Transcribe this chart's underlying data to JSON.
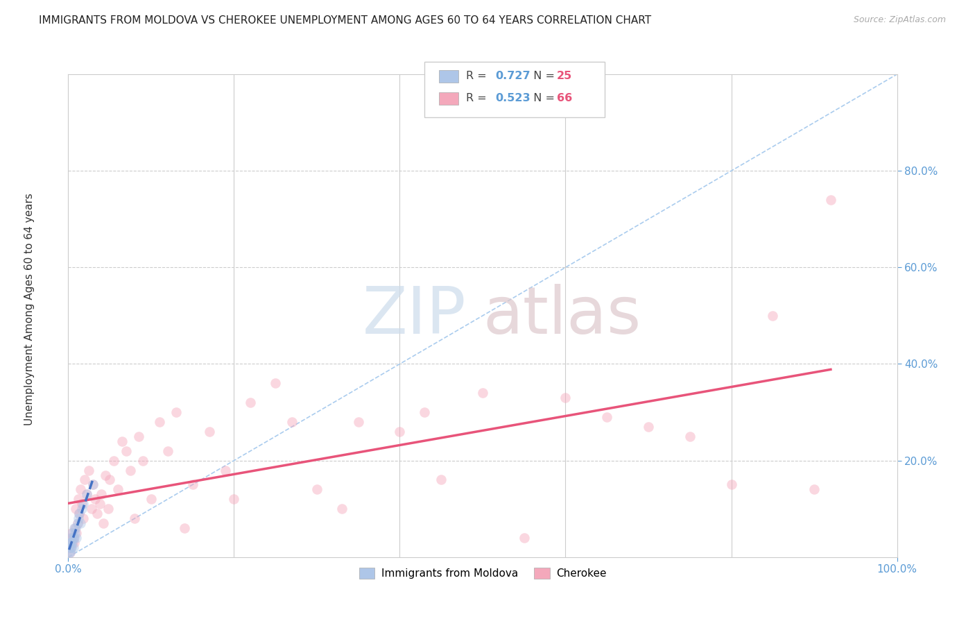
{
  "title": "IMMIGRANTS FROM MOLDOVA VS CHEROKEE UNEMPLOYMENT AMONG AGES 60 TO 64 YEARS CORRELATION CHART",
  "source": "Source: ZipAtlas.com",
  "ylabel": "Unemployment Among Ages 60 to 64 years",
  "background_color": "#ffffff",
  "grid_color": "#cccccc",
  "xlim": [
    0,
    1.0
  ],
  "ylim": [
    0,
    1.0
  ],
  "ytick_positions": [
    0.2,
    0.4,
    0.6,
    0.8
  ],
  "ytick_labels": [
    "20.0%",
    "40.0%",
    "60.0%",
    "80.0%"
  ],
  "xtick_positions": [
    0.0,
    1.0
  ],
  "xtick_labels": [
    "0.0%",
    "100.0%"
  ],
  "title_fontsize": 11,
  "axis_label_fontsize": 11,
  "tick_fontsize": 11,
  "tick_color": "#5b9bd5",
  "marker_size": 110,
  "marker_alpha": 0.45,
  "series": [
    {
      "name": "Immigrants from Moldova",
      "R": 0.727,
      "N": 25,
      "color": "#aec6e8",
      "trendline_color": "#4472c4",
      "trendline_style": "--",
      "x": [
        0.001,
        0.001,
        0.002,
        0.002,
        0.003,
        0.003,
        0.004,
        0.004,
        0.005,
        0.005,
        0.006,
        0.006,
        0.007,
        0.007,
        0.008,
        0.009,
        0.01,
        0.011,
        0.012,
        0.013,
        0.015,
        0.016,
        0.018,
        0.022,
        0.03
      ],
      "y": [
        0.01,
        0.02,
        0.01,
        0.03,
        0.02,
        0.03,
        0.02,
        0.04,
        0.03,
        0.05,
        0.02,
        0.04,
        0.04,
        0.06,
        0.05,
        0.06,
        0.04,
        0.07,
        0.08,
        0.09,
        0.07,
        0.1,
        0.11,
        0.13,
        0.15
      ]
    },
    {
      "name": "Cherokee",
      "R": 0.523,
      "N": 66,
      "color": "#f4a8bb",
      "trendline_color": "#e8547a",
      "trendline_style": "-",
      "x": [
        0.001,
        0.002,
        0.003,
        0.003,
        0.004,
        0.005,
        0.006,
        0.007,
        0.008,
        0.009,
        0.01,
        0.011,
        0.012,
        0.013,
        0.015,
        0.016,
        0.018,
        0.02,
        0.022,
        0.025,
        0.028,
        0.03,
        0.032,
        0.035,
        0.038,
        0.04,
        0.042,
        0.045,
        0.048,
        0.05,
        0.055,
        0.06,
        0.065,
        0.07,
        0.075,
        0.08,
        0.085,
        0.09,
        0.1,
        0.11,
        0.12,
        0.13,
        0.14,
        0.15,
        0.17,
        0.19,
        0.2,
        0.22,
        0.25,
        0.27,
        0.3,
        0.33,
        0.35,
        0.4,
        0.43,
        0.45,
        0.5,
        0.55,
        0.6,
        0.65,
        0.7,
        0.75,
        0.8,
        0.85,
        0.9,
        0.92
      ],
      "y": [
        0.02,
        0.01,
        0.04,
        0.02,
        0.05,
        0.03,
        0.04,
        0.03,
        0.06,
        0.1,
        0.05,
        0.07,
        0.12,
        0.09,
        0.14,
        0.11,
        0.08,
        0.16,
        0.13,
        0.18,
        0.1,
        0.15,
        0.12,
        0.09,
        0.11,
        0.13,
        0.07,
        0.17,
        0.1,
        0.16,
        0.2,
        0.14,
        0.24,
        0.22,
        0.18,
        0.08,
        0.25,
        0.2,
        0.12,
        0.28,
        0.22,
        0.3,
        0.06,
        0.15,
        0.26,
        0.18,
        0.12,
        0.32,
        0.36,
        0.28,
        0.14,
        0.1,
        0.28,
        0.26,
        0.3,
        0.16,
        0.34,
        0.04,
        0.33,
        0.29,
        0.27,
        0.25,
        0.15,
        0.5,
        0.14,
        0.74
      ]
    }
  ],
  "legend_R_color": "#5b9bd5",
  "legend_N_color": "#e8547a",
  "watermark_zip_color": "#ccdcec",
  "watermark_atlas_color": "#ddc8cc"
}
